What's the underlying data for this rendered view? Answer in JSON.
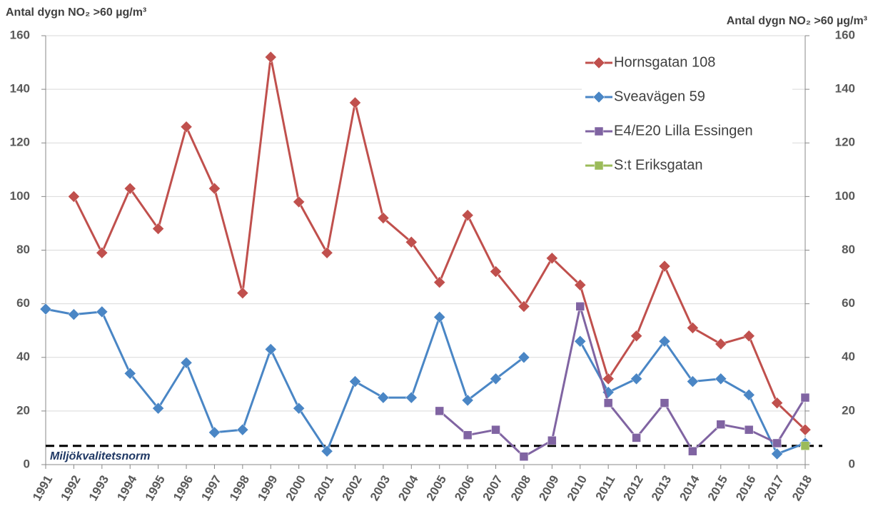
{
  "chart_data": {
    "type": "line",
    "y_label": "Antal dygn NO₂ >60 µg/m³",
    "y2_label": "Antal dygn NO₂ >60 µg/m³",
    "categories": [
      "1991",
      "1992",
      "1993",
      "1994",
      "1995",
      "1996",
      "1997",
      "1998",
      "1999",
      "2000",
      "2001",
      "2002",
      "2003",
      "2004",
      "2005",
      "2006",
      "2007",
      "2008",
      "2009",
      "2010",
      "2011",
      "2012",
      "2013",
      "2014",
      "2015",
      "2016",
      "2017",
      "2018"
    ],
    "series": [
      {
        "name": "Hornsgatan 108",
        "color": "#c0504d",
        "marker": "diamond",
        "values": [
          null,
          100,
          79,
          103,
          88,
          126,
          103,
          64,
          152,
          98,
          79,
          135,
          92,
          83,
          68,
          93,
          72,
          59,
          77,
          67,
          32,
          48,
          74,
          51,
          45,
          48,
          23,
          13
        ]
      },
      {
        "name": "Sveavägen 59",
        "color": "#4a86c5",
        "marker": "diamond",
        "values": [
          58,
          56,
          57,
          34,
          21,
          38,
          12,
          13,
          43,
          21,
          5,
          31,
          25,
          25,
          55,
          24,
          32,
          40,
          null,
          46,
          27,
          32,
          46,
          31,
          32,
          26,
          4,
          8
        ]
      },
      {
        "name": "E4/E20 Lilla Essingen",
        "color": "#8064a2",
        "marker": "square",
        "values": [
          null,
          null,
          null,
          null,
          null,
          null,
          null,
          null,
          null,
          null,
          null,
          null,
          null,
          null,
          20,
          11,
          13,
          3,
          9,
          59,
          23,
          10,
          23,
          5,
          15,
          13,
          8,
          25
        ]
      },
      {
        "name": "S:t Eriksgatan",
        "color": "#9bbb59",
        "marker": "square",
        "values": [
          null,
          null,
          null,
          null,
          null,
          null,
          null,
          null,
          null,
          null,
          null,
          null,
          null,
          null,
          null,
          null,
          null,
          null,
          null,
          null,
          null,
          null,
          null,
          null,
          null,
          null,
          null,
          7
        ]
      }
    ],
    "reference_line": {
      "label": "Miljökvalitetsnorm",
      "value": 7
    },
    "ylim": [
      0,
      160
    ],
    "yticks": [
      0,
      20,
      40,
      60,
      80,
      100,
      120,
      140,
      160
    ],
    "y2lim": [
      0,
      160
    ],
    "y2ticks": [
      0,
      20,
      40,
      60,
      80,
      100,
      120,
      140,
      160
    ],
    "grid": true,
    "legend": "upper right"
  }
}
